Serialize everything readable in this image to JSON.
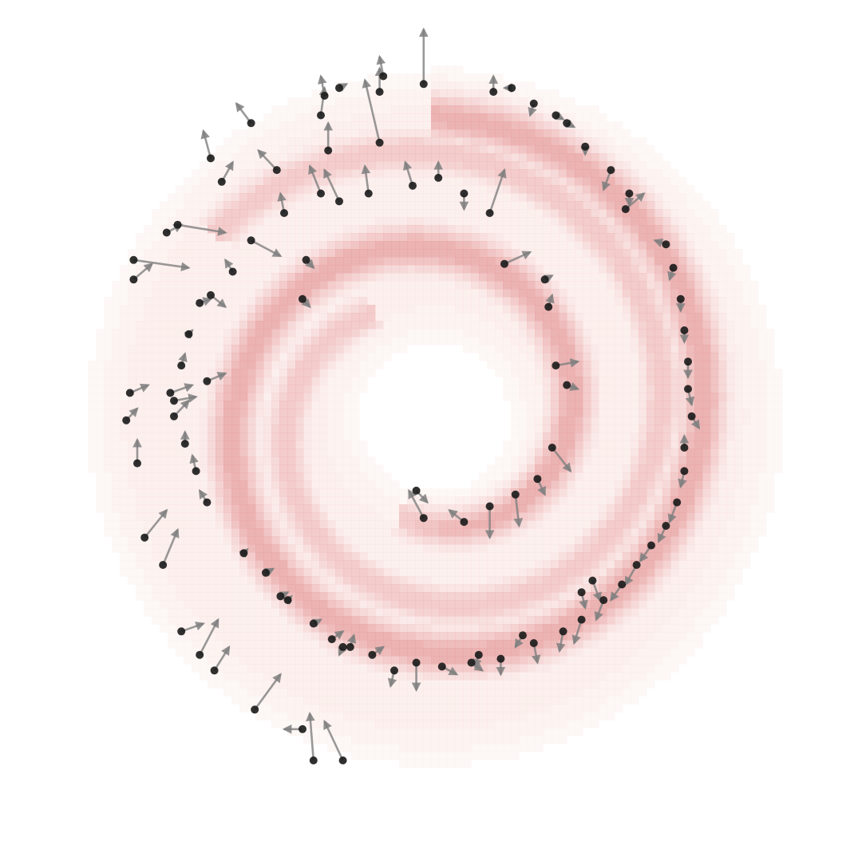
{
  "chart_data": {
    "type": "scatter",
    "subtype": "vector-field-over-density",
    "title": "",
    "xlabel": "",
    "ylabel": "",
    "axes_visible": false,
    "grid": false,
    "legend": "none",
    "xlim": [
      -1.0,
      1.0
    ],
    "ylim": [
      -1.0,
      1.0
    ],
    "colors": {
      "background": "#ffffff",
      "density_low": "#fdf2ee",
      "density_high": "#e9a6a6",
      "contour_line": "#c98a8a",
      "point": "#1a1a1a",
      "arrow": "#7f7f7f"
    },
    "density": {
      "description_free": true,
      "center": [
        0.01,
        0.04
      ],
      "outer_radius": 0.91,
      "inner_void_radius": 0.19,
      "spiral_arms": [
        {
          "r_start": 0.26,
          "r_end": 0.82,
          "theta_start_deg": 250,
          "sweep_deg": 560,
          "width": 0.07,
          "strength": 1.0
        },
        {
          "r_start": 0.33,
          "r_end": 0.78,
          "theta_start_deg": 120,
          "sweep_deg": 380,
          "width": 0.06,
          "strength": 0.75
        }
      ],
      "levels": 12
    },
    "points": [
      {
        "x": -0.02,
        "y": 0.83,
        "dx": 0.0,
        "dy": 0.14
      },
      {
        "x": -0.14,
        "y": 0.68,
        "dx": -0.04,
        "dy": 0.16
      },
      {
        "x": -0.29,
        "y": 0.8,
        "dx": -0.01,
        "dy": 0.05
      },
      {
        "x": -0.3,
        "y": 0.75,
        "dx": 0.01,
        "dy": 0.07
      },
      {
        "x": -0.28,
        "y": 0.66,
        "dx": 0.0,
        "dy": 0.07
      },
      {
        "x": -0.25,
        "y": 0.82,
        "dx": 0.02,
        "dy": 0.01
      },
      {
        "x": -0.14,
        "y": 0.81,
        "dx": 0.0,
        "dy": 0.06
      },
      {
        "x": -0.13,
        "y": 0.85,
        "dx": -0.01,
        "dy": 0.05
      },
      {
        "x": 0.17,
        "y": 0.81,
        "dx": 0.0,
        "dy": 0.04
      },
      {
        "x": 0.22,
        "y": 0.82,
        "dx": -0.02,
        "dy": 0.0
      },
      {
        "x": 0.28,
        "y": 0.78,
        "dx": -0.01,
        "dy": -0.03
      },
      {
        "x": 0.34,
        "y": 0.75,
        "dx": 0.02,
        "dy": -0.01
      },
      {
        "x": 0.37,
        "y": 0.73,
        "dx": 0.02,
        "dy": -0.01
      },
      {
        "x": 0.42,
        "y": 0.67,
        "dx": 0.0,
        "dy": -0.02
      },
      {
        "x": 0.49,
        "y": 0.61,
        "dx": -0.02,
        "dy": -0.05
      },
      {
        "x": 0.54,
        "y": 0.55,
        "dx": 0.0,
        "dy": -0.03
      },
      {
        "x": 0.53,
        "y": 0.51,
        "dx": 0.05,
        "dy": 0.04
      },
      {
        "x": 0.64,
        "y": 0.42,
        "dx": -0.03,
        "dy": 0.01
      },
      {
        "x": 0.66,
        "y": 0.36,
        "dx": -0.01,
        "dy": -0.03
      },
      {
        "x": 0.68,
        "y": 0.28,
        "dx": 0.0,
        "dy": -0.03
      },
      {
        "x": 0.69,
        "y": 0.2,
        "dx": 0.0,
        "dy": -0.03
      },
      {
        "x": 0.7,
        "y": 0.12,
        "dx": 0.0,
        "dy": -0.04
      },
      {
        "x": 0.7,
        "y": 0.05,
        "dx": 0.01,
        "dy": -0.04
      },
      {
        "x": 0.71,
        "y": -0.02,
        "dx": 0.02,
        "dy": -0.03
      },
      {
        "x": 0.69,
        "y": -0.1,
        "dx": 0.0,
        "dy": 0.03
      },
      {
        "x": 0.69,
        "y": -0.16,
        "dx": -0.01,
        "dy": -0.04
      },
      {
        "x": 0.67,
        "y": -0.24,
        "dx": -0.02,
        "dy": -0.05
      },
      {
        "x": 0.64,
        "y": -0.3,
        "dx": -0.02,
        "dy": -0.04
      },
      {
        "x": 0.6,
        "y": -0.35,
        "dx": -0.03,
        "dy": -0.04
      },
      {
        "x": 0.56,
        "y": -0.4,
        "dx": -0.03,
        "dy": -0.05
      },
      {
        "x": 0.52,
        "y": -0.45,
        "dx": -0.03,
        "dy": -0.04
      },
      {
        "x": 0.47,
        "y": -0.49,
        "dx": -0.02,
        "dy": -0.05
      },
      {
        "x": 0.41,
        "y": -0.54,
        "dx": -0.02,
        "dy": -0.06
      },
      {
        "x": 0.36,
        "y": -0.57,
        "dx": -0.01,
        "dy": -0.05
      },
      {
        "x": 0.28,
        "y": -0.6,
        "dx": 0.01,
        "dy": -0.05
      },
      {
        "x": 0.19,
        "y": -0.64,
        "dx": 0.0,
        "dy": -0.04
      },
      {
        "x": 0.11,
        "y": -0.65,
        "dx": 0.03,
        "dy": -0.02
      },
      {
        "x": 0.03,
        "y": -0.66,
        "dx": 0.04,
        "dy": -0.02
      },
      {
        "x": -0.04,
        "y": -0.65,
        "dx": 0.0,
        "dy": -0.07
      },
      {
        "x": -0.1,
        "y": -0.67,
        "dx": -0.01,
        "dy": -0.04
      },
      {
        "x": -0.16,
        "y": -0.63,
        "dx": 0.03,
        "dy": 0.02
      },
      {
        "x": -0.22,
        "y": -0.61,
        "dx": 0.01,
        "dy": 0.03
      },
      {
        "x": -0.27,
        "y": -0.59,
        "dx": 0.03,
        "dy": 0.02
      },
      {
        "x": -0.32,
        "y": -0.55,
        "dx": 0.02,
        "dy": 0.01
      },
      {
        "x": -0.39,
        "y": -0.49,
        "dx": 0.01,
        "dy": 0.01
      },
      {
        "x": -0.45,
        "y": -0.42,
        "dx": 0.02,
        "dy": 0.01
      },
      {
        "x": -0.51,
        "y": -0.37,
        "dx": 0.01,
        "dy": 0.01
      },
      {
        "x": -0.61,
        "y": -0.24,
        "dx": -0.02,
        "dy": 0.03
      },
      {
        "x": -0.64,
        "y": -0.16,
        "dx": -0.01,
        "dy": 0.04
      },
      {
        "x": -0.67,
        "y": -0.09,
        "dx": 0.0,
        "dy": 0.03
      },
      {
        "x": -0.7,
        "y": -0.02,
        "dx": 0.04,
        "dy": 0.04
      },
      {
        "x": -0.7,
        "y": 0.02,
        "dx": 0.06,
        "dy": 0.01
      },
      {
        "x": -0.71,
        "y": 0.04,
        "dx": 0.06,
        "dy": 0.02
      },
      {
        "x": -0.68,
        "y": 0.11,
        "dx": 0.01,
        "dy": 0.03
      },
      {
        "x": -0.66,
        "y": 0.19,
        "dx": 0.01,
        "dy": 0.01
      },
      {
        "x": -0.63,
        "y": 0.27,
        "dx": 0.03,
        "dy": 0.01
      },
      {
        "x": -0.6,
        "y": 0.29,
        "dx": 0.04,
        "dy": -0.03
      },
      {
        "x": -0.54,
        "y": 0.35,
        "dx": -0.02,
        "dy": 0.03
      },
      {
        "x": -0.49,
        "y": 0.43,
        "dx": 0.08,
        "dy": -0.04
      },
      {
        "x": -0.4,
        "y": 0.5,
        "dx": -0.01,
        "dy": 0.05
      },
      {
        "x": -0.3,
        "y": 0.55,
        "dx": -0.03,
        "dy": 0.07
      },
      {
        "x": -0.25,
        "y": 0.53,
        "dx": -0.04,
        "dy": 0.08
      },
      {
        "x": -0.17,
        "y": 0.55,
        "dx": -0.01,
        "dy": 0.07
      },
      {
        "x": -0.05,
        "y": 0.57,
        "dx": -0.02,
        "dy": 0.06
      },
      {
        "x": 0.02,
        "y": 0.59,
        "dx": 0.0,
        "dy": 0.04
      },
      {
        "x": 0.09,
        "y": 0.55,
        "dx": 0.0,
        "dy": -0.04
      },
      {
        "x": 0.16,
        "y": 0.5,
        "dx": 0.04,
        "dy": 0.11
      },
      {
        "x": 0.2,
        "y": 0.37,
        "dx": 0.07,
        "dy": 0.03
      },
      {
        "x": 0.31,
        "y": 0.33,
        "dx": 0.02,
        "dy": 0.01
      },
      {
        "x": 0.32,
        "y": 0.26,
        "dx": 0.01,
        "dy": 0.03
      },
      {
        "x": 0.34,
        "y": 0.11,
        "dx": 0.06,
        "dy": 0.01
      },
      {
        "x": 0.37,
        "y": 0.06,
        "dx": 0.03,
        "dy": -0.01
      },
      {
        "x": 0.33,
        "y": -0.1,
        "dx": 0.05,
        "dy": -0.06
      },
      {
        "x": 0.29,
        "y": -0.18,
        "dx": 0.02,
        "dy": -0.04
      },
      {
        "x": 0.23,
        "y": -0.22,
        "dx": 0.01,
        "dy": -0.08
      },
      {
        "x": 0.16,
        "y": -0.25,
        "dx": 0.0,
        "dy": -0.08
      },
      {
        "x": 0.09,
        "y": -0.29,
        "dx": -0.04,
        "dy": 0.03
      },
      {
        "x": -0.02,
        "y": -0.28,
        "dx": -0.04,
        "dy": 0.07
      },
      {
        "x": -0.04,
        "y": -0.21,
        "dx": 0.03,
        "dy": -0.03
      },
      {
        "x": -0.57,
        "y": 0.58,
        "dx": 0.03,
        "dy": 0.05
      },
      {
        "x": -0.6,
        "y": 0.64,
        "dx": -0.02,
        "dy": 0.07
      },
      {
        "x": -0.49,
        "y": 0.73,
        "dx": -0.04,
        "dy": 0.05
      },
      {
        "x": -0.42,
        "y": 0.61,
        "dx": -0.05,
        "dy": 0.05
      },
      {
        "x": -0.69,
        "y": 0.47,
        "dx": 0.13,
        "dy": -0.02
      },
      {
        "x": -0.72,
        "y": 0.45,
        "dx": 0.04,
        "dy": 0.02
      },
      {
        "x": -0.81,
        "y": 0.33,
        "dx": 0.05,
        "dy": 0.04
      },
      {
        "x": -0.81,
        "y": 0.38,
        "dx": 0.15,
        "dy": -0.02
      },
      {
        "x": -0.82,
        "y": 0.04,
        "dx": 0.05,
        "dy": 0.02
      },
      {
        "x": -0.83,
        "y": -0.03,
        "dx": 0.03,
        "dy": 0.03
      },
      {
        "x": -0.8,
        "y": -0.14,
        "dx": 0.0,
        "dy": 0.06
      },
      {
        "x": -0.78,
        "y": -0.33,
        "dx": 0.06,
        "dy": 0.07
      },
      {
        "x": -0.73,
        "y": -0.4,
        "dx": 0.04,
        "dy": 0.09
      },
      {
        "x": -0.68,
        "y": -0.57,
        "dx": 0.06,
        "dy": 0.02
      },
      {
        "x": -0.63,
        "y": -0.63,
        "dx": 0.05,
        "dy": 0.09
      },
      {
        "x": -0.59,
        "y": -0.67,
        "dx": 0.04,
        "dy": 0.06
      },
      {
        "x": -0.48,
        "y": -0.77,
        "dx": 0.07,
        "dy": 0.09
      },
      {
        "x": -0.35,
        "y": -0.82,
        "dx": -0.05,
        "dy": 0.0
      },
      {
        "x": -0.32,
        "y": -0.9,
        "dx": -0.01,
        "dy": 0.12
      },
      {
        "x": -0.24,
        "y": -0.9,
        "dx": -0.05,
        "dy": 0.1
      },
      {
        "x": 0.41,
        "y": -0.47,
        "dx": 0.01,
        "dy": -0.04
      },
      {
        "x": 0.44,
        "y": -0.44,
        "dx": 0.02,
        "dy": -0.05
      },
      {
        "x": 0.25,
        "y": -0.58,
        "dx": -0.02,
        "dy": -0.03
      },
      {
        "x": 0.13,
        "y": -0.63,
        "dx": -0.01,
        "dy": -0.03
      },
      {
        "x": -0.41,
        "y": -0.48,
        "dx": 0.02,
        "dy": 0.01
      },
      {
        "x": -0.24,
        "y": -0.61,
        "dx": -0.01,
        "dy": -0.02
      },
      {
        "x": -0.35,
        "y": 0.28,
        "dx": 0.02,
        "dy": -0.02
      },
      {
        "x": -0.61,
        "y": 0.07,
        "dx": 0.05,
        "dy": 0.02
      },
      {
        "x": -0.34,
        "y": 0.38,
        "dx": 0.02,
        "dy": -0.02
      }
    ]
  }
}
